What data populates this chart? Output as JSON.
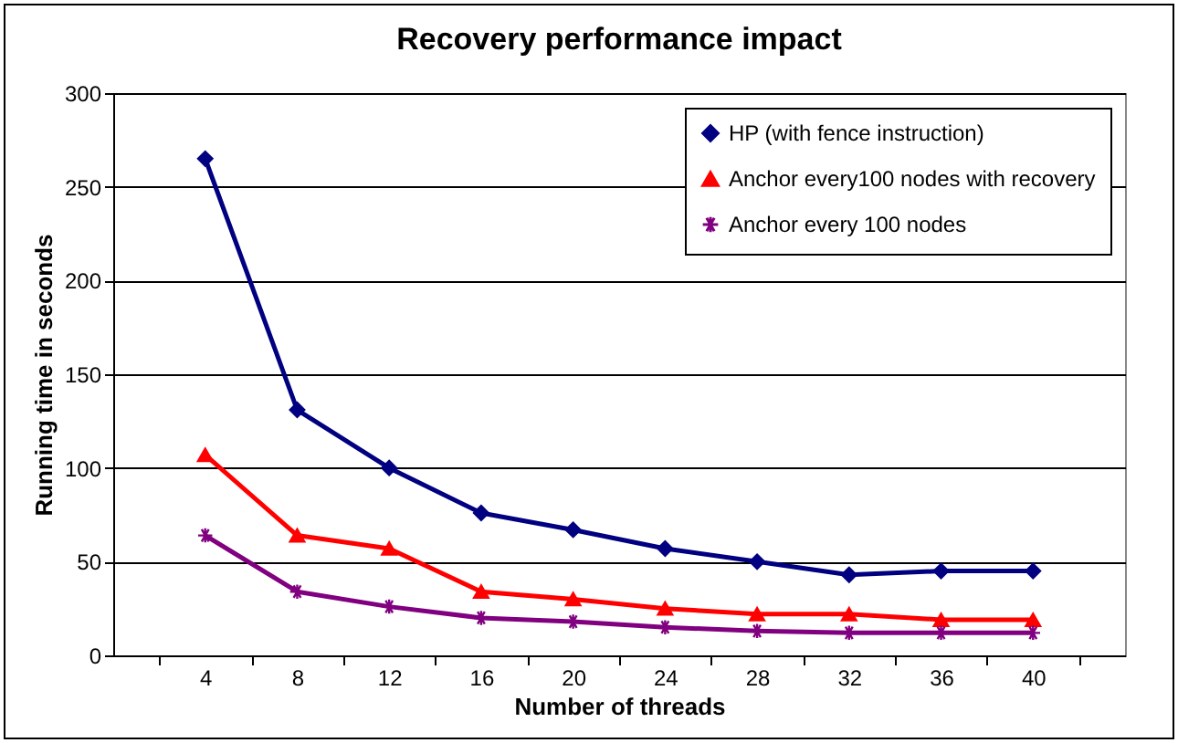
{
  "chart_data": {
    "type": "line",
    "title": "Recovery performance impact",
    "xlabel": "Number of threads",
    "ylabel": "Running time in seconds",
    "categories": [
      "4",
      "8",
      "12",
      "16",
      "20",
      "24",
      "28",
      "32",
      "36",
      "40"
    ],
    "series": [
      {
        "name": "HP (with fence instruction)",
        "color": "#000080",
        "marker": "diamond",
        "values": [
          265,
          131,
          100,
          76,
          67,
          57,
          50,
          43,
          45,
          45
        ]
      },
      {
        "name": "Anchor every100 nodes with recovery",
        "color": "#ff0000",
        "marker": "triangle",
        "values": [
          107,
          64,
          57,
          34,
          30,
          25,
          22,
          22,
          19,
          19
        ]
      },
      {
        "name": "Anchor every 100 nodes",
        "color": "#800080",
        "marker": "cross",
        "values": [
          64,
          34,
          26,
          20,
          18,
          15,
          13,
          12,
          12,
          12
        ]
      }
    ],
    "ylim": [
      0,
      300
    ],
    "yticks": [
      0,
      50,
      100,
      150,
      200,
      250,
      300
    ],
    "grid": "y",
    "legend": "top right",
    "line_style": "solid"
  }
}
